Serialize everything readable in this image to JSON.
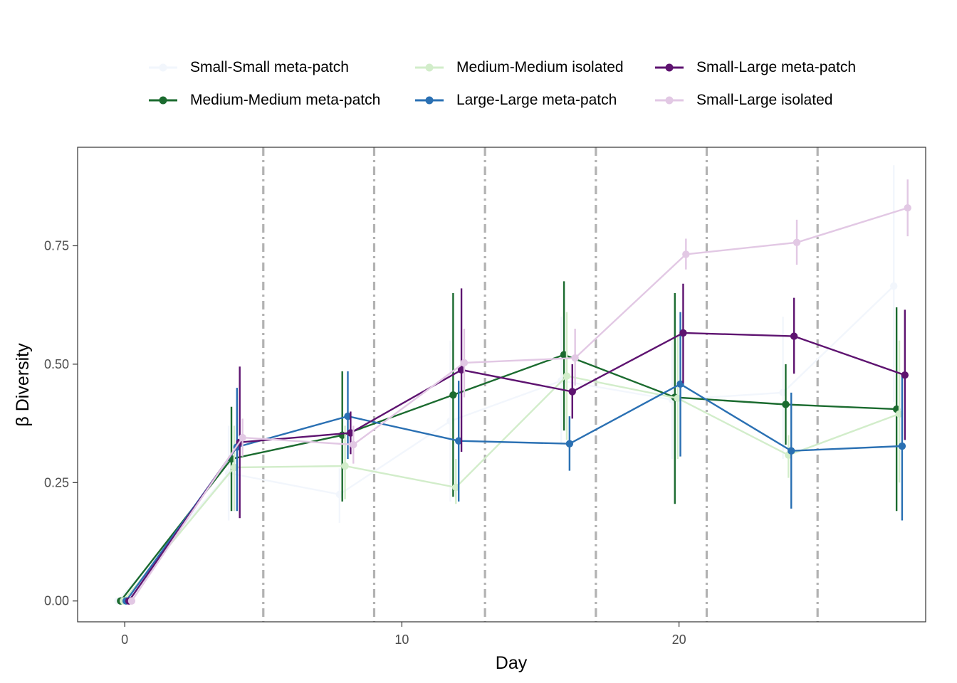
{
  "chart_data": {
    "type": "line",
    "xlabel": "Day",
    "ylabel": "β Diversity",
    "xlim": [
      -1.7,
      28.9
    ],
    "ylim": [
      -0.044,
      0.958
    ],
    "x_ticks": [
      0,
      10,
      20
    ],
    "x_tick_labels": [
      "0",
      "10",
      "20"
    ],
    "y_ticks": [
      0,
      0.25,
      0.5,
      0.75
    ],
    "y_tick_labels": [
      "0.00",
      "0.25",
      "0.50",
      "0.75"
    ],
    "grid": false,
    "legend_position": "top",
    "vlines": [
      5,
      9,
      13,
      17,
      21,
      25
    ],
    "vline_color": "#b2b2b2",
    "x": [
      0,
      4,
      8,
      12,
      16,
      20,
      24,
      28
    ],
    "series": [
      {
        "name": "Small-Small meta-patch",
        "color": "#f2f6fc",
        "dodge": -0.25,
        "values": [
          0,
          0.27,
          0.225,
          0.38,
          0.465,
          0.425,
          0.44,
          0.665
        ],
        "lower": [
          0,
          0.17,
          0.165,
          0.21,
          0.33,
          0.3,
          0.3,
          0.42
        ],
        "upper": [
          0,
          0.37,
          0.28,
          0.55,
          0.6,
          0.55,
          0.6,
          0.92
        ]
      },
      {
        "name": "Medium-Medium meta-patch",
        "color": "#1b6b2f",
        "dodge": -0.15,
        "values": [
          0,
          0.3,
          0.35,
          0.435,
          0.52,
          0.43,
          0.415,
          0.405
        ],
        "lower": [
          0,
          0.19,
          0.21,
          0.22,
          0.36,
          0.205,
          0.33,
          0.19
        ],
        "upper": [
          0,
          0.41,
          0.485,
          0.65,
          0.675,
          0.65,
          0.5,
          0.62
        ]
      },
      {
        "name": "Medium-Medium isolated",
        "color": "#d2edca",
        "dodge": -0.05,
        "values": [
          0,
          0.282,
          0.285,
          0.24,
          0.475,
          0.428,
          0.308,
          0.395
        ],
        "lower": [
          0,
          0.19,
          0.215,
          0.205,
          0.34,
          0.3,
          0.26,
          0.25
        ],
        "upper": [
          0,
          0.37,
          0.37,
          0.3,
          0.61,
          0.56,
          0.35,
          0.55
        ]
      },
      {
        "name": "Large-Large meta-patch",
        "color": "#2a70b3",
        "dodge": 0.05,
        "values": [
          0,
          0.325,
          0.39,
          0.338,
          0.332,
          0.458,
          0.317,
          0.327
        ],
        "lower": [
          0,
          0.19,
          0.3,
          0.21,
          0.275,
          0.305,
          0.195,
          0.17
        ],
        "upper": [
          0,
          0.45,
          0.485,
          0.465,
          0.39,
          0.61,
          0.44,
          0.48
        ]
      },
      {
        "name": "Small-Large meta-patch",
        "color": "#5e1370",
        "dodge": 0.15,
        "values": [
          0,
          0.335,
          0.355,
          0.488,
          0.442,
          0.566,
          0.559,
          0.477
        ],
        "lower": [
          0,
          0.175,
          0.31,
          0.315,
          0.385,
          0.46,
          0.48,
          0.34
        ],
        "upper": [
          0,
          0.495,
          0.4,
          0.66,
          0.5,
          0.67,
          0.64,
          0.615
        ]
      },
      {
        "name": "Small-Large isolated",
        "color": "#e2c8e4",
        "dodge": 0.25,
        "values": [
          0,
          0.345,
          0.33,
          0.503,
          0.513,
          0.732,
          0.757,
          0.83
        ],
        "lower": [
          0,
          0.305,
          0.29,
          0.43,
          0.455,
          0.7,
          0.71,
          0.77
        ],
        "upper": [
          0,
          0.385,
          0.37,
          0.575,
          0.575,
          0.765,
          0.805,
          0.89
        ]
      }
    ]
  }
}
